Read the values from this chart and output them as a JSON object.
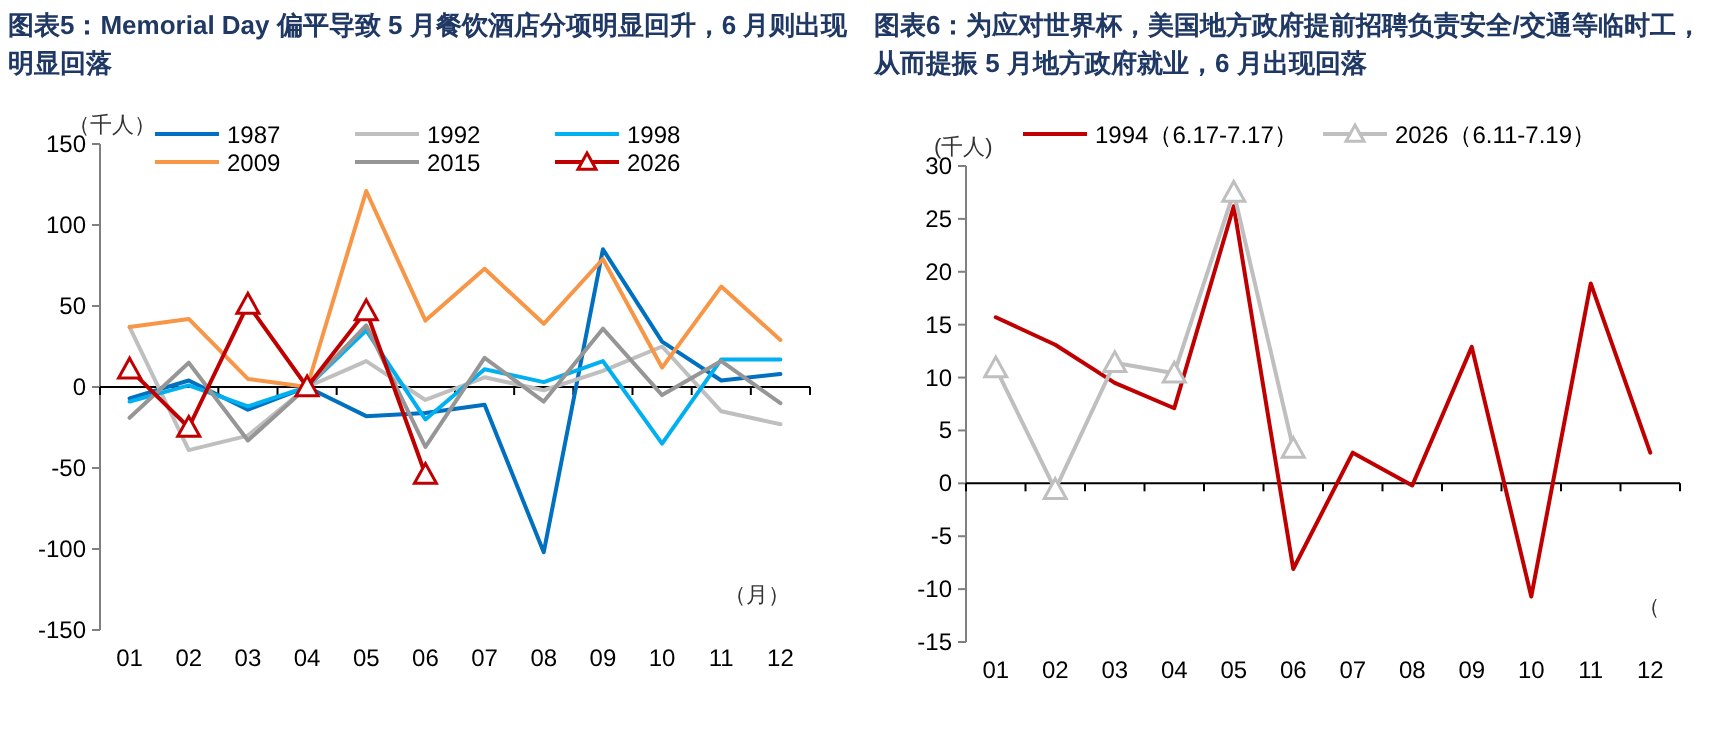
{
  "chart_data": [
    {
      "type": "line",
      "title": "图表5：Memorial Day 偏平导致 5 月餐饮酒店分项明显回升，6 月则出现明显回落",
      "ylabel": "（千人）",
      "xlabel": "（月）",
      "categories": [
        "01",
        "02",
        "03",
        "04",
        "05",
        "06",
        "07",
        "08",
        "09",
        "10",
        "11",
        "12"
      ],
      "ylim": [
        -150,
        150
      ],
      "yticks": [
        -150,
        -100,
        -50,
        0,
        50,
        100,
        150
      ],
      "legend": "top",
      "series": [
        {
          "name": "1987",
          "color": "#0070c0",
          "values": [
            -7,
            4,
            -14,
            0,
            -18,
            -16,
            -11,
            -102,
            85,
            28,
            4,
            8
          ]
        },
        {
          "name": "1992",
          "color": "#bfbfbf",
          "values": [
            37,
            -39,
            -30,
            0,
            16,
            -8,
            6,
            -2,
            10,
            25,
            -15,
            -23
          ]
        },
        {
          "name": "1998",
          "color": "#00b0f0",
          "values": [
            -9,
            1,
            -12,
            0,
            35,
            -20,
            11,
            3,
            16,
            -35,
            17,
            17
          ]
        },
        {
          "name": "2009",
          "color": "#f79646",
          "values": [
            37,
            42,
            5,
            0,
            121,
            41,
            73,
            39,
            79,
            12,
            62,
            29
          ]
        },
        {
          "name": "2015",
          "color": "#969696",
          "values": [
            -19,
            15,
            -33,
            0,
            38,
            -37,
            18,
            -9,
            36,
            -5,
            16,
            -10
          ]
        },
        {
          "name": "2026",
          "color": "#c00000",
          "marker": "triangle",
          "values": [
            11,
            -25,
            51,
            0,
            47,
            -54,
            null,
            null,
            null,
            null,
            null,
            null
          ]
        }
      ]
    },
    {
      "type": "line",
      "title": "图表6：为应对世界杯，美国地方政府提前招聘负责安全/交通等临时工，从而提振 5 月地方政府就业，6 月出现回落",
      "ylabel": "(千人)",
      "xlabel": "（",
      "categories": [
        "01",
        "02",
        "03",
        "04",
        "05",
        "06",
        "07",
        "08",
        "09",
        "10",
        "11",
        "12"
      ],
      "ylim": [
        -15,
        30
      ],
      "yticks": [
        -15,
        -10,
        -5,
        0,
        5,
        10,
        15,
        20,
        25,
        30
      ],
      "legend": "top",
      "series": [
        {
          "name": "1994（6.17-7.17）",
          "color": "#c00000",
          "values": [
            15.7,
            13.1,
            9.5,
            7.1,
            26.2,
            -8.1,
            2.9,
            -0.2,
            12.9,
            -10.7,
            18.9,
            2.9
          ]
        },
        {
          "name": "2026（6.11-7.19）",
          "color": "#bfbfbf",
          "marker": "triangle",
          "values": [
            10.9,
            -0.6,
            11.4,
            10.4,
            27.5,
            3.3,
            null,
            null,
            null,
            null,
            null,
            null
          ]
        }
      ]
    }
  ]
}
